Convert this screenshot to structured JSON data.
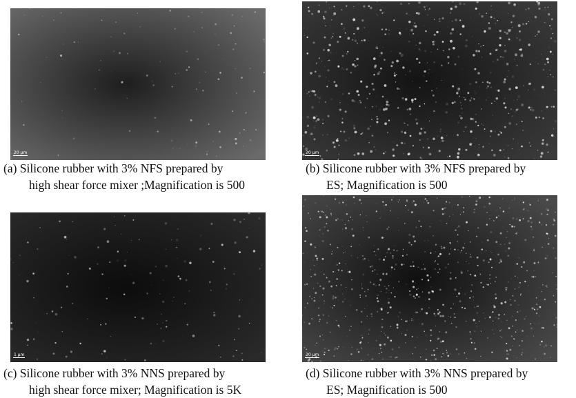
{
  "figures": [
    {
      "scale_bar": "20 µm",
      "caption": {
        "lines": [
          "(a) Silicone rubber with 3% NFS prepared by",
          "high shear force mixer ;Magnification is 500"
        ]
      }
    },
    {
      "scale_bar": "20 µm",
      "caption": {
        "lines": [
          "(b) Silicone rubber with 3% NFS prepared by",
          "ES; Magnification is 500"
        ]
      }
    },
    {
      "scale_bar": "1 µm",
      "caption": {
        "lines": [
          "(c) Silicone rubber with 3% NNS prepared by",
          "high shear force mixer; Magnification is 5K"
        ]
      }
    },
    {
      "scale_bar": "20 µm",
      "caption": {
        "lines": [
          "(d) Silicone rubber with 3% NNS prepared by",
          "ES; Magnification is 500"
        ]
      }
    }
  ]
}
